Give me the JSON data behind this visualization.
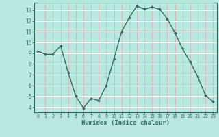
{
  "x": [
    0,
    1,
    2,
    3,
    4,
    5,
    6,
    7,
    8,
    9,
    10,
    11,
    12,
    13,
    14,
    15,
    16,
    17,
    18,
    19,
    20,
    21,
    22,
    23
  ],
  "y": [
    9.2,
    8.9,
    8.9,
    9.7,
    7.2,
    5.0,
    3.9,
    4.8,
    4.6,
    6.0,
    8.5,
    11.0,
    12.3,
    13.4,
    13.1,
    13.3,
    13.1,
    12.2,
    10.9,
    9.4,
    8.2,
    6.8,
    5.1,
    4.5
  ],
  "xlabel": "Humidex (Indice chaleur)",
  "xlim": [
    -0.5,
    23.5
  ],
  "ylim": [
    3.5,
    13.7
  ],
  "yticks": [
    4,
    5,
    6,
    7,
    8,
    9,
    10,
    11,
    12,
    13
  ],
  "xticks": [
    0,
    1,
    2,
    3,
    4,
    5,
    6,
    7,
    8,
    9,
    10,
    11,
    12,
    13,
    14,
    15,
    16,
    17,
    18,
    19,
    20,
    21,
    22,
    23
  ],
  "line_color": "#2e6b5e",
  "marker_color": "#2e6b5e",
  "bg_color": "#b8e8e0",
  "grid_color_v": "#d9b8b8",
  "grid_color_h": "#ffffff",
  "axis_color": "#2e6b5e",
  "tick_color": "#2e6b5e",
  "label_color": "#2e6b5e"
}
